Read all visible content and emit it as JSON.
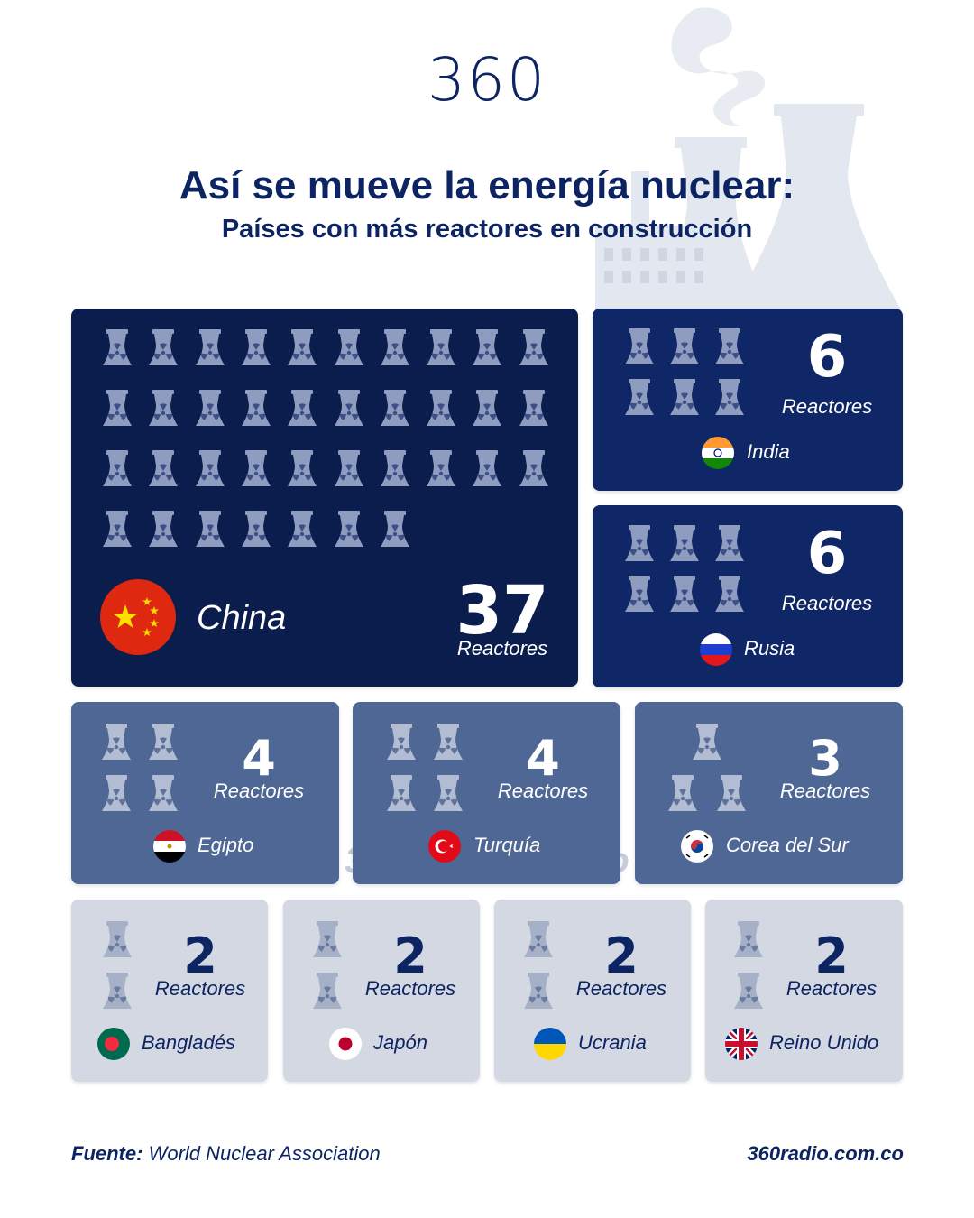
{
  "logo": "360",
  "title": "Así se mueve la energía nuclear:",
  "subtitle": "Países con más reactores en construcción",
  "reactor_label": "Reactores",
  "countries": [
    {
      "name": "China",
      "count": "37"
    },
    {
      "name": "India",
      "count": "6"
    },
    {
      "name": "Rusia",
      "count": "6"
    },
    {
      "name": "Egipto",
      "count": "4"
    },
    {
      "name": "Turquía",
      "count": "4"
    },
    {
      "name": "Corea del Sur",
      "count": "3"
    },
    {
      "name": "Bangladés",
      "count": "2"
    },
    {
      "name": "Japón",
      "count": "2"
    },
    {
      "name": "Ucrania",
      "count": "2"
    },
    {
      "name": "Reino Unido",
      "count": "2"
    }
  ],
  "watermark": {
    "logo": "360",
    "url": "360radio.com.co"
  },
  "footer": {
    "source_label": "Fuente:",
    "source_text": "World Nuclear Association",
    "site": "360radio.com.co"
  },
  "colors": {
    "navy_dark": "#0b1d4c",
    "navy": "#0f2766",
    "slate": "#4f6794",
    "light_gray": "#d3d8e3",
    "text": "#0d2462"
  },
  "icons": [
    "cooling-tower-icon",
    "radiation-icon"
  ]
}
